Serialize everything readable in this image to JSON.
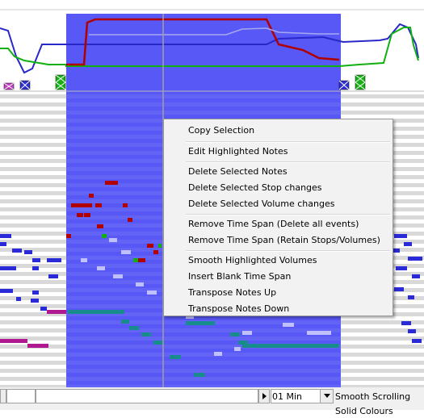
{
  "context_menu": {
    "items": [
      "Copy Selection",
      "Edit Highlighted Notes",
      "Delete Selected Notes",
      "Delete Selected Stop changes",
      "Delete Selected Volume changes",
      "Remove Time Span (Delete all events)",
      "Remove Time Span (Retain Stops/Volumes)",
      "Smooth Highlighted Volumes",
      "Insert Blank Time Span",
      "Transpose Notes Up",
      "Transpose Notes Down"
    ]
  },
  "bottom_bar": {
    "time_select_value": "01 Min",
    "smooth_scrolling_label": "Smooth Scrolling",
    "solid_colours_label": "Solid Colours"
  },
  "colors": {
    "selection": "#4a4af5",
    "row_light": "#d9d9d9",
    "row_selected": "#6a6af6",
    "curve_red": "#b00000",
    "curve_blue": "#2828c8",
    "curve_green": "#10b010",
    "note_red": "#b00000",
    "note_blue": "#2a2ad8",
    "note_teal": "#188c8c",
    "note_magenta": "#b01890"
  },
  "icons": [
    "stop-marker-magenta-icon",
    "stop-marker-blue-icon",
    "stop-marker-green-icon",
    "stop-marker-blue-icon",
    "stop-marker-green-icon"
  ]
}
